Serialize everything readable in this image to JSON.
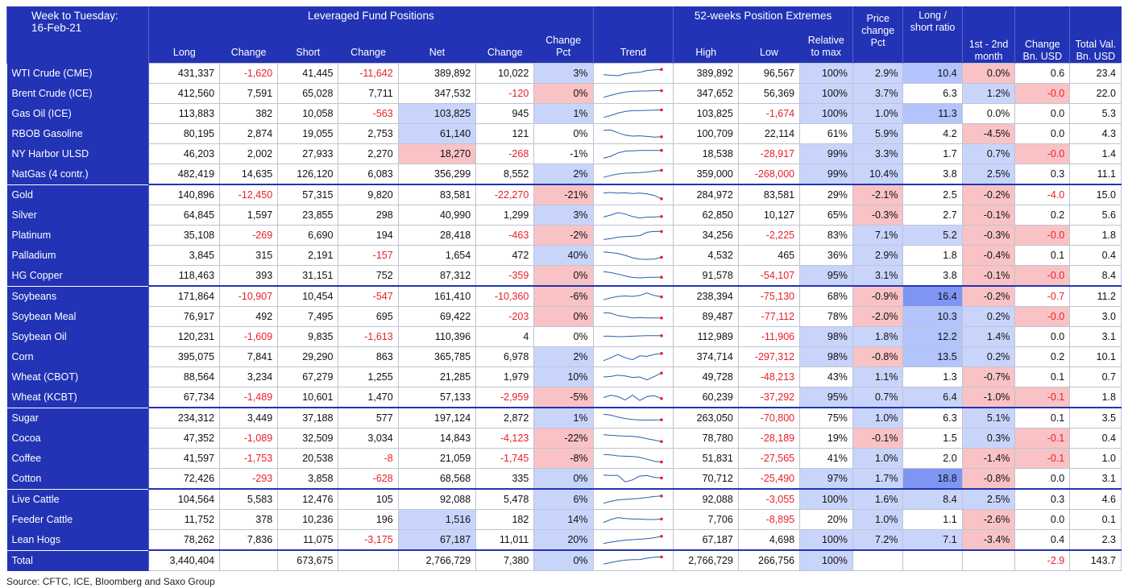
{
  "header": {
    "week_label": "Week to Tuesday:",
    "date_label": "16-Feb-21",
    "group_lev": "Leveraged Fund Positions",
    "group_52": "52-weeks Position Extremes",
    "col_long": "Long",
    "col_change1": "Change",
    "col_short": "Short",
    "col_change2": "Change",
    "col_net": "Net",
    "col_change3": "Change",
    "col_changepct": "Change Pct",
    "col_trend": "Trend",
    "col_high": "High",
    "col_low": "Low",
    "col_rel": "Relative to max",
    "col_price": "Price change Pct",
    "col_ls": "Long / short ratio",
    "col_month": "1st - 2nd month",
    "col_chgusd": "Change Bn. USD",
    "col_totval": "Total Val. Bn. USD"
  },
  "rows": [
    {
      "name": "WTI Crude (CME)",
      "long": "431,337",
      "chg1": "-1,620",
      "short": "41,445",
      "chg2": "-11,642",
      "net": "389,892",
      "chg3": "10,022",
      "pct": "3%",
      "high": "389,892",
      "low": "96,567",
      "rel": "100%",
      "price": "2.9%",
      "ls": "10.4",
      "month": "0.0%",
      "usd": "0.6",
      "tot": "23.4",
      "trend": [
        0.35,
        0.3,
        0.25,
        0.45,
        0.55,
        0.6,
        0.78,
        0.85,
        0.9
      ]
    },
    {
      "name": "Brent Crude (ICE)",
      "long": "412,560",
      "chg1": "7,591",
      "short": "65,028",
      "chg2": "7,711",
      "net": "347,532",
      "chg3": "-120",
      "pct": "0%",
      "high": "347,652",
      "low": "56,369",
      "rel": "100%",
      "price": "3.7%",
      "ls": "6.3",
      "month": "1.2%",
      "usd": "-0.0",
      "tot": "22.0",
      "trend": [
        0.1,
        0.3,
        0.5,
        0.65,
        0.72,
        0.75,
        0.76,
        0.78,
        0.78
      ]
    },
    {
      "name": "Gas Oil (ICE)",
      "long": "113,883",
      "chg1": "382",
      "short": "10,058",
      "chg2": "-563",
      "net": "103,825",
      "chg3": "945",
      "pct": "1%",
      "high": "103,825",
      "low": "-1,674",
      "rel": "100%",
      "price": "1.0%",
      "ls": "11.3",
      "month": "0.0%",
      "usd": "0.0",
      "tot": "5.3",
      "trend": [
        0.1,
        0.3,
        0.55,
        0.72,
        0.8,
        0.82,
        0.83,
        0.86,
        0.88
      ]
    },
    {
      "name": "RBOB Gasoline",
      "long": "80,195",
      "chg1": "2,874",
      "short": "19,055",
      "chg2": "2,753",
      "net": "61,140",
      "chg3": "121",
      "pct": "0%",
      "high": "100,709",
      "low": "22,114",
      "rel": "61%",
      "price": "5.9%",
      "ls": "4.2",
      "month": "-4.5%",
      "usd": "0.0",
      "tot": "4.3",
      "trend": [
        0.85,
        0.88,
        0.6,
        0.35,
        0.25,
        0.28,
        0.22,
        0.15,
        0.18
      ]
    },
    {
      "name": "NY Harbor ULSD",
      "long": "46,203",
      "chg1": "2,002",
      "short": "27,933",
      "chg2": "2,270",
      "net": "18,270",
      "chg3": "-268",
      "pct": "-1%",
      "high": "18,538",
      "low": "-28,917",
      "rel": "99%",
      "price": "3.3%",
      "ls": "1.7",
      "month": "0.7%",
      "usd": "-0.0",
      "tot": "1.4",
      "trend": [
        0.05,
        0.25,
        0.6,
        0.78,
        0.82,
        0.85,
        0.85,
        0.86,
        0.86
      ]
    },
    {
      "name": "NatGas (4 contr.)",
      "long": "482,419",
      "chg1": "14,635",
      "short": "126,120",
      "chg2": "6,083",
      "net": "356,299",
      "chg3": "8,552",
      "pct": "2%",
      "high": "359,000",
      "low": "-268,000",
      "rel": "99%",
      "price": "10.4%",
      "ls": "3.8",
      "month": "2.5%",
      "usd": "0.3",
      "tot": "11.1",
      "trend": [
        0.15,
        0.35,
        0.5,
        0.58,
        0.62,
        0.65,
        0.7,
        0.8,
        0.88
      ]
    },
    {
      "name": "Gold",
      "long": "140,896",
      "chg1": "-12,450",
      "short": "57,315",
      "chg2": "9,820",
      "net": "83,581",
      "chg3": "-22,270",
      "pct": "-21%",
      "high": "284,972",
      "low": "83,581",
      "rel": "29%",
      "price": "-2.1%",
      "ls": "2.5",
      "month": "-0.2%",
      "usd": "-4.0",
      "tot": "15.0",
      "trend": [
        0.7,
        0.75,
        0.68,
        0.72,
        0.65,
        0.7,
        0.6,
        0.45,
        0.1
      ]
    },
    {
      "name": "Silver",
      "long": "64,845",
      "chg1": "1,597",
      "short": "23,855",
      "chg2": "298",
      "net": "40,990",
      "chg3": "1,299",
      "pct": "3%",
      "high": "62,850",
      "low": "10,127",
      "rel": "65%",
      "price": "-0.3%",
      "ls": "2.7",
      "month": "-0.1%",
      "usd": "0.2",
      "tot": "5.6",
      "trend": [
        0.3,
        0.5,
        0.75,
        0.6,
        0.35,
        0.2,
        0.28,
        0.3,
        0.35
      ]
    },
    {
      "name": "Platinum",
      "long": "35,108",
      "chg1": "-269",
      "short": "6,690",
      "chg2": "194",
      "net": "28,418",
      "chg3": "-463",
      "pct": "-2%",
      "high": "34,256",
      "low": "-2,225",
      "rel": "83%",
      "price": "7.1%",
      "ls": "5.2",
      "month": "-0.3%",
      "usd": "-0.0",
      "tot": "1.8",
      "trend": [
        0.05,
        0.15,
        0.3,
        0.35,
        0.4,
        0.45,
        0.8,
        0.9,
        0.88
      ]
    },
    {
      "name": "Palladium",
      "long": "3,845",
      "chg1": "315",
      "short": "2,191",
      "chg2": "-157",
      "net": "1,654",
      "chg3": "472",
      "pct": "40%",
      "high": "4,532",
      "low": "465",
      "rel": "36%",
      "price": "2.9%",
      "ls": "1.8",
      "month": "-0.4%",
      "usd": "0.1",
      "tot": "0.4",
      "trend": [
        0.85,
        0.78,
        0.7,
        0.5,
        0.25,
        0.1,
        0.08,
        0.12,
        0.3
      ]
    },
    {
      "name": "HG Copper",
      "long": "118,463",
      "chg1": "393",
      "short": "31,151",
      "chg2": "752",
      "net": "87,312",
      "chg3": "-359",
      "pct": "0%",
      "high": "91,578",
      "low": "-54,107",
      "rel": "95%",
      "price": "3.1%",
      "ls": "3.8",
      "month": "-0.1%",
      "usd": "-0.0",
      "tot": "8.4",
      "trend": [
        0.9,
        0.8,
        0.65,
        0.45,
        0.3,
        0.25,
        0.3,
        0.32,
        0.32
      ]
    },
    {
      "name": "Soybeans",
      "long": "171,864",
      "chg1": "-10,907",
      "short": "10,454",
      "chg2": "-547",
      "net": "161,410",
      "chg3": "-10,360",
      "pct": "-6%",
      "high": "238,394",
      "low": "-75,130",
      "rel": "68%",
      "price": "-0.9%",
      "ls": "16.4",
      "month": "-0.2%",
      "usd": "-0.7",
      "tot": "11.2",
      "trend": [
        0.15,
        0.35,
        0.5,
        0.55,
        0.5,
        0.6,
        0.85,
        0.6,
        0.45
      ]
    },
    {
      "name": "Soybean Meal",
      "long": "76,917",
      "chg1": "492",
      "short": "7,495",
      "chg2": "695",
      "net": "69,422",
      "chg3": "-203",
      "pct": "0%",
      "high": "89,487",
      "low": "-77,112",
      "rel": "78%",
      "price": "-2.0%",
      "ls": "10.3",
      "month": "0.2%",
      "usd": "-0.0",
      "tot": "3.0",
      "trend": [
        0.9,
        0.85,
        0.6,
        0.5,
        0.35,
        0.4,
        0.35,
        0.35,
        0.35
      ]
    },
    {
      "name": "Soybean Oil",
      "long": "120,231",
      "chg1": "-1,609",
      "short": "9,835",
      "chg2": "-1,613",
      "net": "110,396",
      "chg3": "4",
      "pct": "0%",
      "high": "112,989",
      "low": "-11,906",
      "rel": "98%",
      "price": "1.8%",
      "ls": "12.2",
      "month": "1.4%",
      "usd": "0.0",
      "tot": "3.1",
      "trend": [
        0.55,
        0.55,
        0.5,
        0.52,
        0.55,
        0.58,
        0.6,
        0.6,
        0.6
      ]
    },
    {
      "name": "Corn",
      "long": "395,075",
      "chg1": "7,841",
      "short": "29,290",
      "chg2": "863",
      "net": "365,785",
      "chg3": "6,978",
      "pct": "2%",
      "high": "374,714",
      "low": "-297,312",
      "rel": "98%",
      "price": "-0.8%",
      "ls": "13.5",
      "month": "0.2%",
      "usd": "0.2",
      "tot": "10.1",
      "trend": [
        0.1,
        0.4,
        0.75,
        0.4,
        0.2,
        0.6,
        0.55,
        0.75,
        0.85
      ]
    },
    {
      "name": "Wheat (CBOT)",
      "long": "88,564",
      "chg1": "3,234",
      "short": "67,279",
      "chg2": "1,255",
      "net": "21,285",
      "chg3": "1,979",
      "pct": "10%",
      "high": "49,728",
      "low": "-48,213",
      "rel": "43%",
      "price": "1.1%",
      "ls": "1.3",
      "month": "-0.7%",
      "usd": "0.1",
      "tot": "0.7",
      "trend": [
        0.5,
        0.55,
        0.68,
        0.6,
        0.45,
        0.5,
        0.2,
        0.55,
        0.9
      ]
    },
    {
      "name": "Wheat (KCBT)",
      "long": "67,734",
      "chg1": "-1,489",
      "short": "10,601",
      "chg2": "1,470",
      "net": "57,133",
      "chg3": "-2,959",
      "pct": "-5%",
      "high": "60,239",
      "low": "-37,292",
      "rel": "95%",
      "price": "0.7%",
      "ls": "6.4",
      "month": "-1.0%",
      "usd": "-0.1",
      "tot": "1.8",
      "trend": [
        0.45,
        0.7,
        0.55,
        0.2,
        0.7,
        0.15,
        0.55,
        0.65,
        0.35
      ]
    },
    {
      "name": "Sugar",
      "long": "234,312",
      "chg1": "3,449",
      "short": "37,188",
      "chg2": "577",
      "net": "197,124",
      "chg3": "2,872",
      "pct": "1%",
      "high": "263,050",
      "low": "-70,800",
      "rel": "75%",
      "price": "1.0%",
      "ls": "6.3",
      "month": "5.1%",
      "usd": "0.1",
      "tot": "3.5",
      "trend": [
        0.9,
        0.8,
        0.6,
        0.45,
        0.35,
        0.3,
        0.28,
        0.3,
        0.32
      ]
    },
    {
      "name": "Cocoa",
      "long": "47,352",
      "chg1": "-1,089",
      "short": "32,509",
      "chg2": "3,034",
      "net": "14,843",
      "chg3": "-4,123",
      "pct": "-22%",
      "high": "78,780",
      "low": "-28,189",
      "rel": "19%",
      "price": "-0.1%",
      "ls": "1.5",
      "month": "0.3%",
      "usd": "-0.1",
      "tot": "0.4",
      "trend": [
        0.85,
        0.8,
        0.75,
        0.72,
        0.7,
        0.6,
        0.45,
        0.3,
        0.15
      ]
    },
    {
      "name": "Coffee",
      "long": "41,597",
      "chg1": "-1,753",
      "short": "20,538",
      "chg2": "-8",
      "net": "21,059",
      "chg3": "-1,745",
      "pct": "-8%",
      "high": "51,831",
      "low": "-27,565",
      "rel": "41%",
      "price": "1.0%",
      "ls": "2.0",
      "month": "-1.4%",
      "usd": "-0.1",
      "tot": "1.0",
      "trend": [
        0.9,
        0.85,
        0.75,
        0.72,
        0.68,
        0.6,
        0.4,
        0.2,
        0.12
      ]
    },
    {
      "name": "Cotton",
      "long": "72,426",
      "chg1": "-293",
      "short": "3,858",
      "chg2": "-628",
      "net": "68,568",
      "chg3": "335",
      "pct": "0%",
      "high": "70,712",
      "low": "-25,490",
      "rel": "97%",
      "price": "1.7%",
      "ls": "18.8",
      "month": "-0.8%",
      "usd": "0.0",
      "tot": "3.1",
      "trend": [
        0.85,
        0.82,
        0.8,
        0.15,
        0.35,
        0.75,
        0.8,
        0.62,
        0.55
      ]
    },
    {
      "name": "Live Cattle",
      "long": "104,564",
      "chg1": "5,583",
      "short": "12,476",
      "chg2": "105",
      "net": "92,088",
      "chg3": "5,478",
      "pct": "6%",
      "high": "92,088",
      "low": "-3,055",
      "rel": "100%",
      "price": "1.6%",
      "ls": "8.4",
      "month": "2.5%",
      "usd": "0.3",
      "tot": "4.6",
      "trend": [
        0.1,
        0.3,
        0.45,
        0.5,
        0.55,
        0.6,
        0.7,
        0.8,
        0.85
      ]
    },
    {
      "name": "Feeder Cattle",
      "long": "11,752",
      "chg1": "378",
      "short": "10,236",
      "chg2": "196",
      "net": "1,516",
      "chg3": "182",
      "pct": "14%",
      "high": "7,706",
      "low": "-8,895",
      "rel": "20%",
      "price": "1.0%",
      "ls": "1.1",
      "month": "-2.6%",
      "usd": "0.0",
      "tot": "0.1",
      "trend": [
        0.2,
        0.5,
        0.7,
        0.6,
        0.55,
        0.55,
        0.5,
        0.5,
        0.55
      ]
    },
    {
      "name": "Lean Hogs",
      "long": "78,262",
      "chg1": "7,836",
      "short": "11,075",
      "chg2": "-3,175",
      "net": "67,187",
      "chg3": "11,011",
      "pct": "20%",
      "high": "67,187",
      "low": "4,698",
      "rel": "100%",
      "price": "7.2%",
      "ls": "7.1",
      "month": "-3.4%",
      "usd": "0.4",
      "tot": "2.3",
      "trend": [
        0.1,
        0.25,
        0.35,
        0.45,
        0.5,
        0.55,
        0.6,
        0.7,
        0.85
      ]
    },
    {
      "name": "Total",
      "long": "3,440,404",
      "chg1": "",
      "short": "673,675",
      "chg2": "",
      "net": "2,766,729",
      "chg3": "7,380",
      "pct": "0%",
      "high": "2,766,729",
      "low": "266,756",
      "rel": "100%",
      "price": "",
      "ls": "",
      "month": "",
      "usd": "-2.9",
      "tot": "143.7",
      "trend": [
        0.15,
        0.3,
        0.45,
        0.55,
        0.6,
        0.62,
        0.75,
        0.85,
        0.88
      ]
    }
  ],
  "styles": {
    "net": {
      "2": "hb",
      "3": "hb",
      "4": "hr",
      "22": "hb",
      "23": "hb",
      "25": "hb"
    },
    "pct": {
      "0": "hb",
      "1": "hr",
      "2": "hb",
      "5": "hb",
      "6": "hr",
      "7": "hb",
      "8": "hr",
      "9": "hb",
      "10": "hr",
      "11": "hr",
      "12": "hr",
      "14": "hb",
      "15": "hb",
      "16": "hr",
      "17": "hb",
      "18": "hr",
      "19": "hr",
      "20": "hb",
      "21": "hb",
      "22": "hb",
      "23": "hb",
      "24": "hb",
      "25": "hb"
    },
    "rel": {
      "0": "hb",
      "1": "hb",
      "2": "hb",
      "4": "hb",
      "5": "hb",
      "10": "hb",
      "13": "hb",
      "14": "hb",
      "16": "hb",
      "20": "hb",
      "21": "hb",
      "23": "hb",
      "24": "hb"
    },
    "price": {
      "0": "hb",
      "1": "hb",
      "2": "hb",
      "3": "hb",
      "4": "hb",
      "5": "hb",
      "6": "hr",
      "7": "hr",
      "8": "hb",
      "9": "hb",
      "10": "hb",
      "11": "hr",
      "12": "hr",
      "13": "hb",
      "14": "hr",
      "15": "hb",
      "16": "hb",
      "17": "hb",
      "18": "hr",
      "19": "hb",
      "20": "hb",
      "21": "hb",
      "22": "hb",
      "23": "hb"
    },
    "ls": {
      "0": "hb2",
      "2": "hb2",
      "8": "hb",
      "11": "hb3",
      "12": "hb2",
      "13": "hb2",
      "14": "hb2",
      "16": "hb",
      "20": "hb3",
      "21": "hb",
      "23": "hb"
    },
    "month": {
      "0": "hr",
      "1": "hb",
      "3": "hr",
      "4": "hb",
      "5": "hb",
      "6": "hr",
      "7": "hr",
      "8": "hr",
      "9": "hr",
      "10": "hr",
      "11": "hr",
      "12": "hb",
      "13": "hb",
      "14": "hb",
      "15": "hr",
      "16": "hr",
      "17": "hb",
      "18": "hb",
      "19": "hr",
      "20": "hr",
      "21": "hb",
      "22": "hr",
      "23": "hr"
    },
    "usd": {
      "1": "hr",
      "4": "hr",
      "8": "hr",
      "10": "hr",
      "12": "hr",
      "16": "hr",
      "18": "hr",
      "19": "hr"
    }
  },
  "trend_color": "#2a5db0",
  "trend_end_color": "#e8202a",
  "source": "Source: CFTC, ICE, Bloomberg and Saxo Group"
}
